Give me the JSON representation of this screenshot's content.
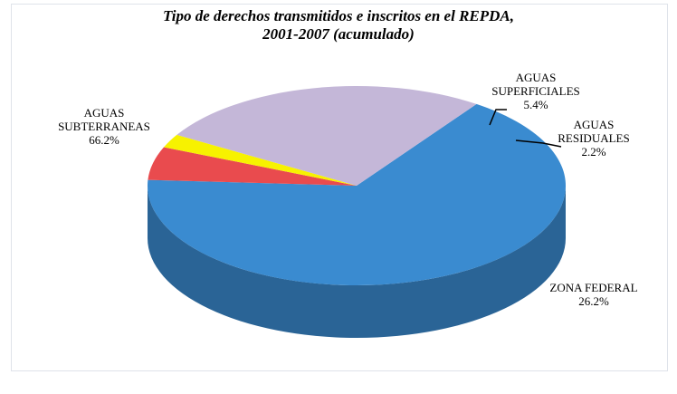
{
  "chart_data": {
    "type": "pie",
    "title": "Tipo de derechos transmitidos e inscritos en el REPDA, 2001-2007 (acumulado)",
    "categories": [
      "AGUAS SUBTERRANEAS",
      "AGUAS SUPERFICIALES",
      "AGUAS RESIDUALES",
      "ZONA FEDERAL"
    ],
    "values": [
      66.2,
      5.4,
      2.2,
      26.2
    ],
    "value_labels": [
      "66.2%",
      "5.4%",
      "2.2%",
      "26.2%"
    ],
    "colors": [
      "#3a8bd0",
      "#e94b4e",
      "#f7f200",
      "#c4b7d8"
    ]
  }
}
